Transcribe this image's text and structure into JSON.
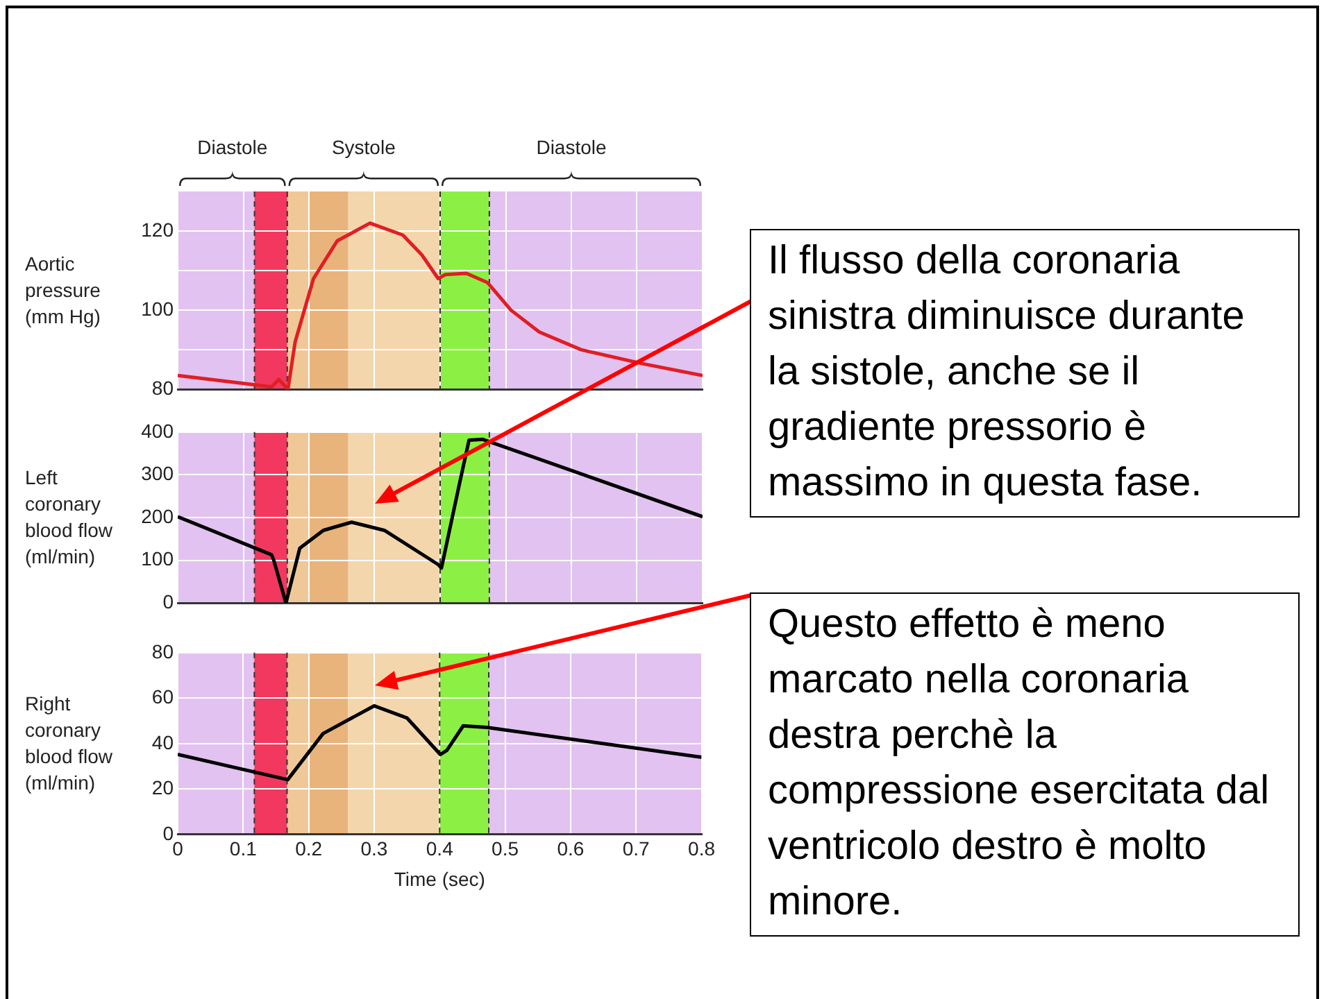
{
  "chart_data": [
    {
      "type": "line",
      "ylabel": "Aortic pressure (mm Hg)",
      "xlim": [
        0,
        0.8
      ],
      "xticks": [
        0,
        0.1,
        0.2,
        0.3,
        0.4,
        0.5,
        0.6,
        0.7,
        0.8
      ],
      "ylim": [
        80,
        130
      ],
      "yticks": [
        80,
        {
          "value": 90,
          "label": null
        },
        100,
        {
          "value": 110,
          "label": null
        },
        120
      ],
      "grid": true,
      "tick_labels": "y",
      "series": [
        {
          "color": "#e01e24",
          "x": [
            0,
            0.114,
            0.143,
            0.154,
            0.168,
            0.179,
            0.207,
            0.243,
            0.293,
            0.343,
            0.372,
            0.397,
            0.408,
            0.44,
            0.472,
            0.508,
            0.551,
            0.615,
            0.708,
            0.8
          ],
          "values": [
            83.5,
            81.2,
            80.6,
            82.5,
            80,
            92,
            108,
            117.5,
            122,
            119,
            114,
            108,
            109,
            109.3,
            107,
            100,
            94.5,
            90,
            86.5,
            83.5
          ]
        }
      ],
      "bands": [
        {
          "axis": "x",
          "from": 0,
          "to": 0.117,
          "color": "#e2c2f0"
        },
        {
          "axis": "x",
          "from": 0.117,
          "to": 0.167,
          "color": "#f2385e"
        },
        {
          "axis": "x",
          "from": 0.167,
          "to": 0.2,
          "color": "#f0c898"
        },
        {
          "axis": "x",
          "from": 0.2,
          "to": 0.26,
          "color": "#e8b47c"
        },
        {
          "axis": "x",
          "from": 0.26,
          "to": 0.4,
          "color": "#f4d6ac"
        },
        {
          "axis": "x",
          "from": 0.4,
          "to": 0.475,
          "color": "#8cf044"
        },
        {
          "axis": "x",
          "from": 0.475,
          "to": 0.8,
          "color": "#e2c2f0"
        }
      ],
      "annotations": [
        "Diastole",
        "Systole",
        "Diastole"
      ],
      "ref_lines": [
        {
          "axis": "x",
          "value": 0.117,
          "color": "#333333",
          "line_style": "dashed"
        },
        {
          "axis": "x",
          "value": 0.167,
          "color": "#333333",
          "line_style": "dashed"
        },
        {
          "axis": "x",
          "value": 0.4,
          "color": "#333333",
          "line_style": "dashed"
        },
        {
          "axis": "x",
          "value": 0.475,
          "color": "#333333",
          "line_style": "dashed"
        }
      ]
    },
    {
      "type": "line",
      "ylabel": "Left coronary blood flow (ml/min)",
      "xlim": [
        0,
        0.8
      ],
      "xticks": [
        0,
        0.1,
        0.2,
        0.3,
        0.4,
        0.5,
        0.6,
        0.7,
        0.8
      ],
      "ylim": [
        0,
        400
      ],
      "yticks": [
        0,
        100,
        200,
        300,
        400
      ],
      "grid": true,
      "tick_labels": "y",
      "series": [
        {
          "color": "#000000",
          "x": [
            0,
            0.143,
            0.146,
            0.165,
            0.186,
            0.222,
            0.265,
            0.315,
            0.397,
            0.402,
            0.429,
            0.444,
            0.465,
            0.8
          ],
          "values": [
            202,
            113,
            102,
            0,
            128,
            170,
            189,
            170,
            90,
            82,
            276,
            381,
            383,
            202
          ]
        }
      ],
      "bands": [
        {
          "axis": "x",
          "from": 0,
          "to": 0.117,
          "color": "#e2c2f0"
        },
        {
          "axis": "x",
          "from": 0.117,
          "to": 0.167,
          "color": "#f2385e"
        },
        {
          "axis": "x",
          "from": 0.167,
          "to": 0.2,
          "color": "#f0c898"
        },
        {
          "axis": "x",
          "from": 0.2,
          "to": 0.26,
          "color": "#e8b47c"
        },
        {
          "axis": "x",
          "from": 0.26,
          "to": 0.4,
          "color": "#f4d6ac"
        },
        {
          "axis": "x",
          "from": 0.4,
          "to": 0.475,
          "color": "#8cf044"
        },
        {
          "axis": "x",
          "from": 0.475,
          "to": 0.8,
          "color": "#e2c2f0"
        }
      ],
      "ref_lines": [
        {
          "axis": "x",
          "value": 0.117,
          "color": "#333333",
          "line_style": "dashed"
        },
        {
          "axis": "x",
          "value": 0.167,
          "color": "#333333",
          "line_style": "dashed"
        },
        {
          "axis": "x",
          "value": 0.4,
          "color": "#333333",
          "line_style": "dashed"
        },
        {
          "axis": "x",
          "value": 0.475,
          "color": "#333333",
          "line_style": "dashed"
        }
      ],
      "annotations": [
        "Il flusso della coronaria sinistra diminuisce durante la sistole, anche se il gradiente pressorio è massimo in questa fase."
      ]
    },
    {
      "type": "line",
      "ylabel": "Right coronary blood flow (ml/min)",
      "xlabel": "Time (sec)",
      "xlim": [
        0,
        0.8
      ],
      "xticks": [
        0,
        0.1,
        0.2,
        0.3,
        0.4,
        0.5,
        0.6,
        0.7,
        0.8
      ],
      "ylim": [
        0,
        80
      ],
      "yticks": [
        0,
        20,
        40,
        60,
        80
      ],
      "grid": true,
      "series": [
        {
          "color": "#000000",
          "x": [
            0,
            0.168,
            0.222,
            0.3,
            0.35,
            0.401,
            0.411,
            0.436,
            0.472,
            0.8
          ],
          "values": [
            35.2,
            24.1,
            44.4,
            56.6,
            51.3,
            35.2,
            37,
            47.8,
            47.1,
            34
          ]
        }
      ],
      "bands": [
        {
          "axis": "x",
          "from": 0,
          "to": 0.117,
          "color": "#e2c2f0"
        },
        {
          "axis": "x",
          "from": 0.117,
          "to": 0.167,
          "color": "#f2385e"
        },
        {
          "axis": "x",
          "from": 0.167,
          "to": 0.2,
          "color": "#f0c898"
        },
        {
          "axis": "x",
          "from": 0.2,
          "to": 0.26,
          "color": "#e8b47c"
        },
        {
          "axis": "x",
          "from": 0.26,
          "to": 0.4,
          "color": "#f4d6ac"
        },
        {
          "axis": "x",
          "from": 0.4,
          "to": 0.475,
          "color": "#8cf044"
        },
        {
          "axis": "x",
          "from": 0.475,
          "to": 0.8,
          "color": "#e2c2f0"
        }
      ],
      "ref_lines": [
        {
          "axis": "x",
          "value": 0.117,
          "color": "#333333",
          "line_style": "dashed"
        },
        {
          "axis": "x",
          "value": 0.167,
          "color": "#333333",
          "line_style": "dashed"
        },
        {
          "axis": "x",
          "value": 0.4,
          "color": "#333333",
          "line_style": "dashed"
        },
        {
          "axis": "x",
          "value": 0.475,
          "color": "#333333",
          "line_style": "dashed"
        }
      ],
      "annotations": [
        "Questo effetto è meno marcato nella coronaria destra perchè la compressione esercitata dal ventricolo destro è molto minore."
      ]
    }
  ]
}
